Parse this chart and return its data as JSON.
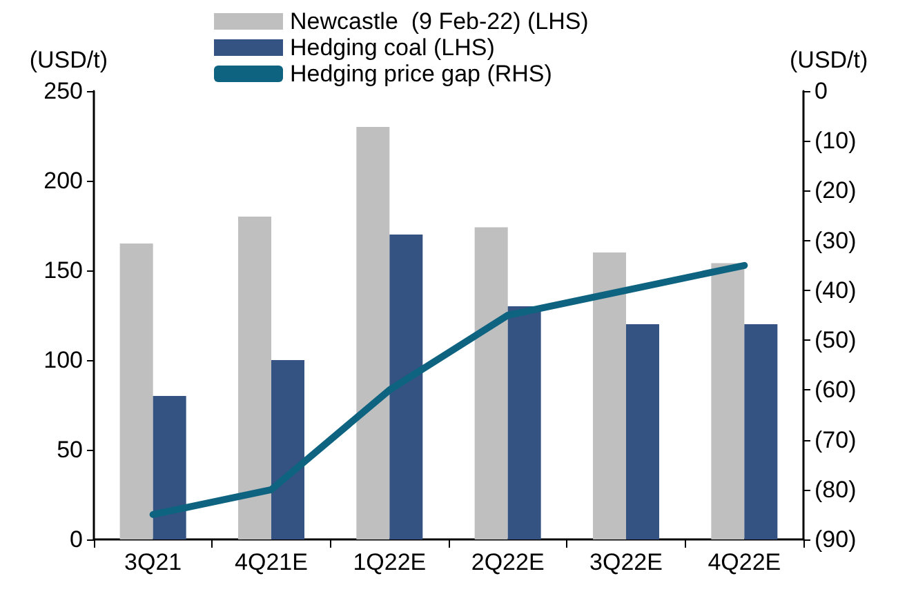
{
  "chart_data": {
    "type": "bar",
    "categories": [
      "3Q21",
      "4Q21E",
      "1Q22E",
      "2Q22E",
      "3Q22E",
      "4Q22E"
    ],
    "series": [
      {
        "name": "Newcastle  (9 Feb-22) (LHS)",
        "color": "#bfbfbf",
        "values": [
          165,
          180,
          230,
          174,
          160,
          154
        ]
      },
      {
        "name": "Hedging coal (LHS)",
        "color": "#355382",
        "values": [
          80,
          100,
          170,
          130,
          120,
          120
        ]
      },
      {
        "name": "Hedging price gap (RHS)",
        "type": "line",
        "axis": "y2",
        "color": "#0e6380",
        "values": [
          -85,
          -80,
          -60,
          -45,
          -40,
          -35
        ]
      }
    ],
    "ylabel": "(USD/t)",
    "y2label": "(USD/t)",
    "ylim": [
      0,
      250
    ],
    "yticks": [
      0,
      50,
      100,
      150,
      200,
      250
    ],
    "y2lim": [
      -90,
      0
    ],
    "y2ticks": [
      {
        "value": -90,
        "label": "(90)"
      },
      {
        "value": -80,
        "label": "(80)"
      },
      {
        "value": -70,
        "label": "(70)"
      },
      {
        "value": -60,
        "label": "(60)"
      },
      {
        "value": -50,
        "label": "(50)"
      },
      {
        "value": -40,
        "label": "(40)"
      },
      {
        "value": -30,
        "label": "(30)"
      },
      {
        "value": -20,
        "label": "(20)"
      },
      {
        "value": -10,
        "label": "(10)"
      },
      0
    ],
    "grid": false,
    "legend": "top",
    "marker": "none",
    "line_style": "solid"
  }
}
